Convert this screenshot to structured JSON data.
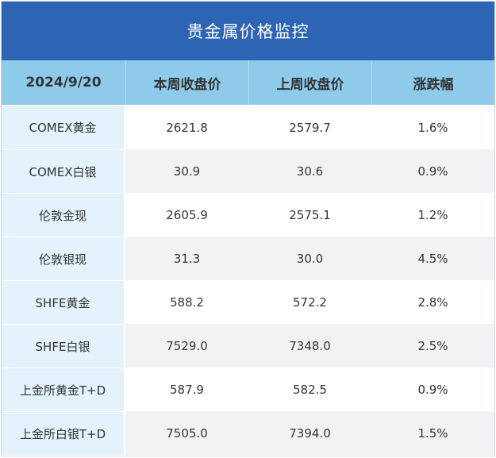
{
  "title": "贵金属价格监控",
  "table": {
    "headers": [
      "2024/9/20",
      "本周收盘价",
      "上周收盘价",
      "涨跌幅"
    ],
    "rows": [
      {
        "name": "COMEX黄金",
        "this_week": "2621.8",
        "last_week": "2579.7",
        "change": "1.6%"
      },
      {
        "name": "COMEX白银",
        "this_week": "30.9",
        "last_week": "30.6",
        "change": "0.9%"
      },
      {
        "name": "伦敦金现",
        "this_week": "2605.9",
        "last_week": "2575.1",
        "change": "1.2%"
      },
      {
        "name": "伦敦银现",
        "this_week": "31.3",
        "last_week": "30.0",
        "change": "4.5%"
      },
      {
        "name": "SHFE黄金",
        "this_week": "588.2",
        "last_week": "572.2",
        "change": "2.8%"
      },
      {
        "name": "SHFE白银",
        "this_week": "7529.0",
        "last_week": "7348.0",
        "change": "2.5%"
      },
      {
        "name": "上金所黄金T+D",
        "this_week": "587.9",
        "last_week": "582.5",
        "change": "0.9%"
      },
      {
        "name": "上金所白银T+D",
        "this_week": "7505.0",
        "last_week": "7394.0",
        "change": "1.5%"
      }
    ]
  },
  "colors": {
    "title_background": "#2d64b4",
    "header_background": "#8ecbea",
    "first_column_background": "#e4f2fb",
    "alternate_row_background": "#f2f2f2"
  }
}
